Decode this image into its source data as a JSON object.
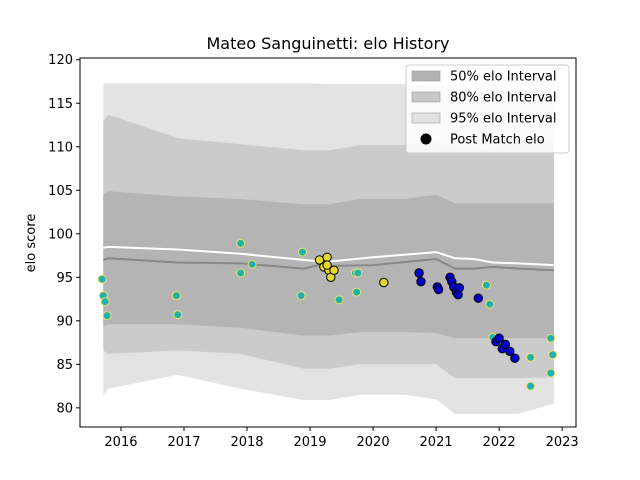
{
  "chart_data": {
    "type": "scatter",
    "title": "Mateo Sanguinetti: elo History",
    "xlabel": "",
    "ylabel": "elo score",
    "xlim": [
      2015.35,
      2023.22
    ],
    "ylim": [
      77.8,
      120.2
    ],
    "x_ticks": [
      2016,
      2017,
      2018,
      2019,
      2020,
      2021,
      2022,
      2023
    ],
    "x_tick_labels": [
      "2016",
      "2017",
      "2018",
      "2019",
      "2020",
      "2021",
      "2022",
      "2023"
    ],
    "y_ticks": [
      80,
      85,
      90,
      95,
      100,
      105,
      110,
      115,
      120
    ],
    "y_tick_labels": [
      "80",
      "85",
      "90",
      "95",
      "100",
      "105",
      "110",
      "115",
      "120"
    ],
    "legend_position": "top-right",
    "legend": [
      {
        "label": "50% elo Interval",
        "kind": "patch",
        "color": "#b3b3b3"
      },
      {
        "label": "80% elo Interval",
        "kind": "patch",
        "color": "#c8c8c8"
      },
      {
        "label": "95% elo Interval",
        "kind": "patch",
        "color": "#e1e1e1"
      },
      {
        "label": "Post Match elo",
        "kind": "marker",
        "color": "#000000"
      }
    ],
    "colors": {
      "band95": "#e3e3e3",
      "band80": "#cbcbcb",
      "band50": "#b4b4b4",
      "mean_line": "#ffffff",
      "median_line": "#888888",
      "teal": "#20b2aa",
      "yellow": "#e6d92e",
      "blue": "#0000cc"
    },
    "bands": {
      "x": [
        2015.72,
        2015.8,
        2016.9,
        2017.9,
        2018.9,
        2019.3,
        2019.8,
        2020.5,
        2021.0,
        2021.3,
        2021.9,
        2022.3,
        2022.87
      ],
      "p95_hi": [
        117.3,
        117.3,
        117.3,
        117.3,
        117.3,
        117.2,
        117.2,
        117.2,
        117.0,
        116.5,
        116.5,
        116.5,
        116.4
      ],
      "p95_lo": [
        81.5,
        82.2,
        83.8,
        82.2,
        80.9,
        80.9,
        81.5,
        81.5,
        81.0,
        79.3,
        79.3,
        79.3,
        80.5
      ],
      "p80_hi": [
        113.0,
        113.7,
        111.0,
        110.3,
        109.6,
        109.6,
        110.2,
        110.2,
        110.5,
        109.8,
        109.7,
        110.8,
        110.8
      ],
      "p80_lo": [
        86.6,
        86.2,
        86.6,
        86.2,
        84.5,
        84.5,
        85.0,
        85.0,
        85.0,
        83.4,
        83.4,
        83.4,
        83.5
      ],
      "p50_hi": [
        104.5,
        104.9,
        104.3,
        104.0,
        103.4,
        103.4,
        104.0,
        104.0,
        104.5,
        103.5,
        103.5,
        103.5,
        103.5
      ],
      "p50_lo": [
        89.3,
        89.6,
        89.6,
        89.2,
        88.3,
        88.3,
        88.7,
        88.7,
        88.6,
        88.0,
        88.0,
        88.0,
        88.0
      ]
    },
    "mean_line": {
      "x": [
        2015.72,
        2015.8,
        2016.9,
        2017.9,
        2018.9,
        2019.25,
        2019.3,
        2020.0,
        2021.0,
        2021.3,
        2021.6,
        2021.9,
        2022.3,
        2022.87
      ],
      "y": [
        98.4,
        98.5,
        98.2,
        97.7,
        97.0,
        96.7,
        96.8,
        97.3,
        97.9,
        97.2,
        97.1,
        96.7,
        96.6,
        96.4
      ]
    },
    "median_line": {
      "x": [
        2015.72,
        2015.8,
        2016.9,
        2017.9,
        2018.9,
        2019.25,
        2019.3,
        2020.0,
        2021.0,
        2021.3,
        2021.6,
        2021.9,
        2022.3,
        2022.87
      ],
      "y": [
        97.0,
        97.2,
        96.7,
        96.6,
        96.0,
        96.6,
        96.3,
        96.4,
        97.1,
        96.0,
        96.0,
        96.2,
        96.0,
        95.8
      ]
    },
    "series": [
      {
        "color": "teal",
        "points": [
          [
            2015.7,
            94.8
          ],
          [
            2015.72,
            92.9
          ],
          [
            2015.75,
            92.2
          ],
          [
            2015.78,
            90.6
          ],
          [
            2016.88,
            92.9
          ],
          [
            2016.9,
            90.7
          ],
          [
            2017.9,
            98.9
          ],
          [
            2017.9,
            95.5
          ],
          [
            2018.08,
            96.5
          ],
          [
            2018.88,
            97.9
          ],
          [
            2018.86,
            92.9
          ],
          [
            2019.46,
            92.4
          ],
          [
            2019.72,
            95.5
          ],
          [
            2019.76,
            95.5
          ],
          [
            2019.74,
            93.3
          ],
          [
            2021.8,
            94.1
          ],
          [
            2021.85,
            91.9
          ],
          [
            2021.9,
            88.1
          ],
          [
            2022.5,
            85.8
          ],
          [
            2022.5,
            82.5
          ],
          [
            2022.82,
            88.0
          ],
          [
            2022.85,
            86.1
          ],
          [
            2022.82,
            84.0
          ]
        ]
      },
      {
        "color": "yellow",
        "points": [
          [
            2019.15,
            97.0
          ],
          [
            2019.22,
            96.2
          ],
          [
            2019.27,
            97.3
          ],
          [
            2019.3,
            95.8
          ],
          [
            2019.33,
            95.0
          ],
          [
            2019.38,
            95.8
          ],
          [
            2019.27,
            96.4
          ],
          [
            2020.17,
            94.4
          ]
        ]
      },
      {
        "color": "blue",
        "points": [
          [
            2020.73,
            95.5
          ],
          [
            2020.76,
            94.5
          ],
          [
            2021.02,
            93.9
          ],
          [
            2021.04,
            93.6
          ],
          [
            2021.22,
            95.0
          ],
          [
            2021.25,
            94.5
          ],
          [
            2021.28,
            93.9
          ],
          [
            2021.32,
            93.3
          ],
          [
            2021.35,
            93.0
          ],
          [
            2021.37,
            93.8
          ],
          [
            2021.67,
            92.6
          ],
          [
            2021.95,
            87.6
          ],
          [
            2022.0,
            88.0
          ],
          [
            2022.05,
            86.8
          ],
          [
            2022.1,
            87.3
          ],
          [
            2022.17,
            86.5
          ],
          [
            2022.25,
            85.7
          ]
        ]
      }
    ]
  }
}
